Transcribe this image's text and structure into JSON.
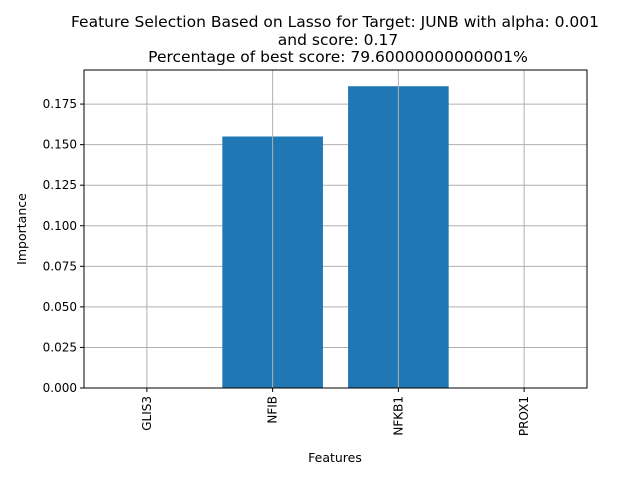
{
  "chart_data": {
    "type": "bar",
    "title": [
      "Feature Selection Based on Lasso for Target: JUNB with alpha: 0.001",
      "and score: 0.17",
      "Percentage of best score: 79.60000000000001%"
    ],
    "xlabel": "Features",
    "ylabel": "Importance",
    "categories": [
      "GLIS3",
      "NFIB",
      "NFKB1",
      "PROX1"
    ],
    "values": [
      0.0,
      0.155,
      0.186,
      0.0
    ],
    "ylim": [
      0,
      0.196
    ],
    "yticks": [
      "0.000",
      "0.025",
      "0.050",
      "0.075",
      "0.100",
      "0.125",
      "0.150",
      "0.175"
    ],
    "grid": true,
    "bar_color": "#1f77b4",
    "grid_color": "#b0b0b0"
  }
}
